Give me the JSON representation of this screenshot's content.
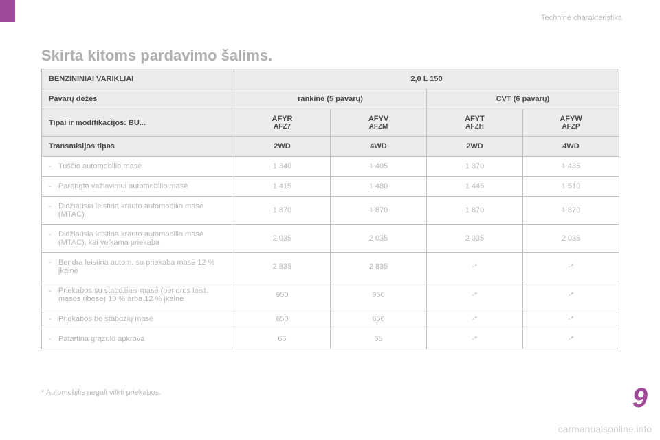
{
  "breadcrumb": "Techninė charakteristika",
  "heading": "Skirta kitoms pardavimo šalims.",
  "table": {
    "col_widths": [
      "280px",
      "140px",
      "140px",
      "140px",
      "140px"
    ],
    "header": {
      "engines_label": "BENZININIAI VARIKLIAI",
      "engine_value": "2,0 L 150",
      "gearbox_label": "Pavarų dėžės",
      "gearbox_manual": "rankinė (5 pavarų)",
      "gearbox_cvt": "CVT (6 pavarų)",
      "types_label": "Tipai ir modifikacijos: BU...",
      "codes": [
        {
          "top": "AFYR",
          "bottom": "AFZ7"
        },
        {
          "top": "AFYV",
          "bottom": "AFZM"
        },
        {
          "top": "AFYT",
          "bottom": "AFZH"
        },
        {
          "top": "AFYW",
          "bottom": "AFZP"
        }
      ],
      "trans_label": "Transmisijos tipas",
      "trans_values": [
        "2WD",
        "4WD",
        "2WD",
        "4WD"
      ]
    },
    "rows": [
      {
        "label": "Tuščio automobilio masė",
        "v": [
          "1 340",
          "1 405",
          "1 370",
          "1 435"
        ]
      },
      {
        "label": "Parengto važiavimui automobilio masė",
        "v": [
          "1 415",
          "1 480",
          "1 445",
          "1 510"
        ]
      },
      {
        "label": "Didžiausia leistina krauto automobilio masė (MTAC)",
        "v": [
          "1 870",
          "1 870",
          "1 870",
          "1 870"
        ]
      },
      {
        "label": "Didžiausia leistina krauto automobilio masė (MTAC), kai velkama priekaba",
        "v": [
          "2 035",
          "2 035",
          "2 035",
          "2 035"
        ]
      },
      {
        "label": "Bendra leistina autom. su priekaba masė 12 % įkalnė",
        "v": [
          "2 835",
          "2 835",
          "-*",
          "-*"
        ]
      },
      {
        "label": "Priekabos su stabdžiais masė (bendros leist. masės ribose) 10 % arba 12 % įkalnė",
        "v": [
          "950",
          "950",
          "-*",
          "-*"
        ]
      },
      {
        "label": "Priekabos be stabdžių masė",
        "v": [
          "650",
          "650",
          "-*",
          "-*"
        ]
      },
      {
        "label": "Patartina grąžulo apkrova",
        "v": [
          "65",
          "65",
          "-*",
          "-*"
        ]
      }
    ]
  },
  "footnote": "* Automobilis negali vilkti priekabos.",
  "chapter_number": "9",
  "watermark": "carmanualsonline.info",
  "colors": {
    "accent": "#a04a9a",
    "header_bg": "#ececec",
    "border": "#c0c0c0",
    "text_main": "#6b6b6b",
    "text_faded": "#b8b8b8",
    "text_header": "#4a4a4a",
    "background": "#ffffff"
  },
  "typography": {
    "heading_fontsize": 22,
    "table_fontsize": 11,
    "chapter_fontsize": 40,
    "breadcrumb_fontsize": 11,
    "footnote_fontsize": 11
  }
}
